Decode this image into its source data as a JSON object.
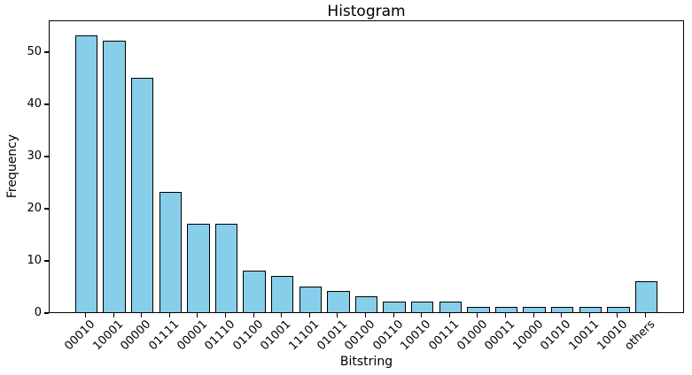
{
  "chart_data": {
    "type": "bar",
    "title": "Histogram",
    "xlabel": "Bitstring",
    "ylabel": "Frequency",
    "categories": [
      "00010",
      "10001",
      "00000",
      "01111",
      "00001",
      "01110",
      "01100",
      "01001",
      "11101",
      "01011",
      "00100",
      "00110",
      "10010",
      "00111",
      "01000",
      "00011",
      "10000",
      "01010",
      "10011",
      "10010",
      "others"
    ],
    "values": [
      53,
      52,
      45,
      23,
      17,
      17,
      8,
      7,
      5,
      4,
      3,
      2,
      2,
      2,
      1,
      1,
      1,
      1,
      1,
      1,
      6
    ],
    "yticks": [
      0,
      10,
      20,
      30,
      40,
      50
    ],
    "ylim": [
      0,
      56.1
    ],
    "x_tick_rotation": 45,
    "grid": false,
    "legend_position": "none",
    "bar_color": "#87CEEB",
    "bar_edge_color": "#000000"
  }
}
